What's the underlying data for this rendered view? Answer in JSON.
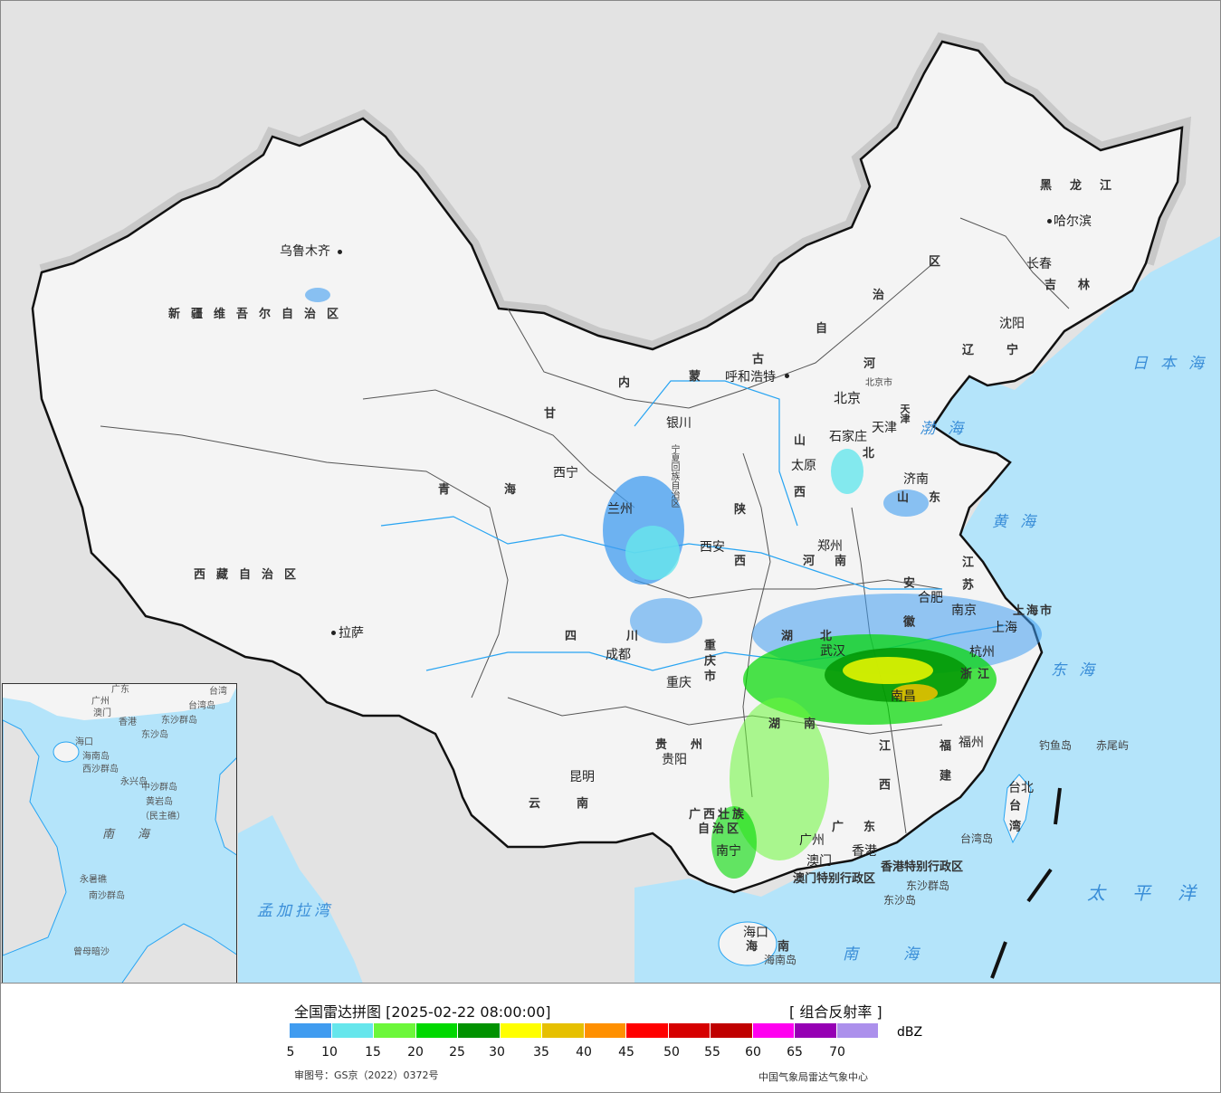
{
  "legend": {
    "title": "全国雷达拼图 [2025-02-22 08:00:00]",
    "product": "[ 组合反射率 ]",
    "unit": "dBZ",
    "ticks": [
      "5",
      "10",
      "15",
      "20",
      "25",
      "30",
      "35",
      "40",
      "45",
      "50",
      "55",
      "60",
      "65",
      "70"
    ],
    "colors": [
      "#409cf0",
      "#66e6ec",
      "#6cf73a",
      "#00d800",
      "#009200",
      "#ffff00",
      "#e6c000",
      "#ff9000",
      "#ff0000",
      "#d60000",
      "#c00000",
      "#ff00f0",
      "#9600b4",
      "#ac90ec"
    ],
    "approval_number": "审图号：GS京（2022）0372号",
    "credit": "中国气象局雷达气象中心"
  },
  "map_colors": {
    "sea": "#b4e4fa",
    "land_china": "#f4f4f4",
    "land_foreign": "#e3e3e3",
    "border": "#111111",
    "river": "#27a4f2"
  },
  "provinces": [
    "新疆维吾尔自治区",
    "西藏自治区",
    "青海",
    "甘",
    "内",
    "蒙",
    "古",
    "自",
    "治",
    "区",
    "黑龙江",
    "吉林",
    "辽宁",
    "河",
    "北",
    "山",
    "西",
    "陕",
    "西",
    "宁夏回族自治区",
    "山东",
    "河南",
    "江苏",
    "安徽",
    "湖北",
    "四川",
    "重庆市",
    "贵州",
    "云南",
    "湖南",
    "江西",
    "浙江",
    "福建",
    "广西壮族",
    "自治区",
    "广东",
    "海南",
    "台湾",
    "上海市",
    "北京市",
    "天津",
    "香港特别行政区",
    "澳门特别行政区"
  ],
  "cities": [
    "乌鲁木齐",
    "拉萨",
    "西宁",
    "兰州",
    "银川",
    "呼和浩特",
    "北京",
    "天津",
    "石家庄",
    "太原",
    "济南",
    "郑州",
    "西安",
    "成都",
    "重庆",
    "贵阳",
    "昆明",
    "南宁",
    "广州",
    "澳门",
    "香港",
    "海口",
    "武汉",
    "合肥",
    "南京",
    "上海",
    "杭州",
    "南昌",
    "福州",
    "台北",
    "哈尔滨",
    "长春",
    "沈阳"
  ],
  "islands": [
    "海南岛",
    "台湾岛",
    "钓鱼岛",
    "赤尾屿",
    "东沙群岛",
    "东沙岛"
  ],
  "seas": [
    "日本海",
    "渤海",
    "黄海",
    "东海",
    "太平洋",
    "南海",
    "孟加拉湾"
  ],
  "inset": {
    "labels": [
      "南海",
      "南沙群岛",
      "西沙群岛",
      "中沙群岛",
      "黄岩岛",
      "（民主礁）",
      "永兴岛",
      "永暑礁",
      "曾母暗沙",
      "海南岛",
      "东沙群岛",
      "东沙岛",
      "台湾岛",
      "台湾",
      "广东",
      "广州",
      "澳门",
      "香港",
      "海口"
    ]
  }
}
